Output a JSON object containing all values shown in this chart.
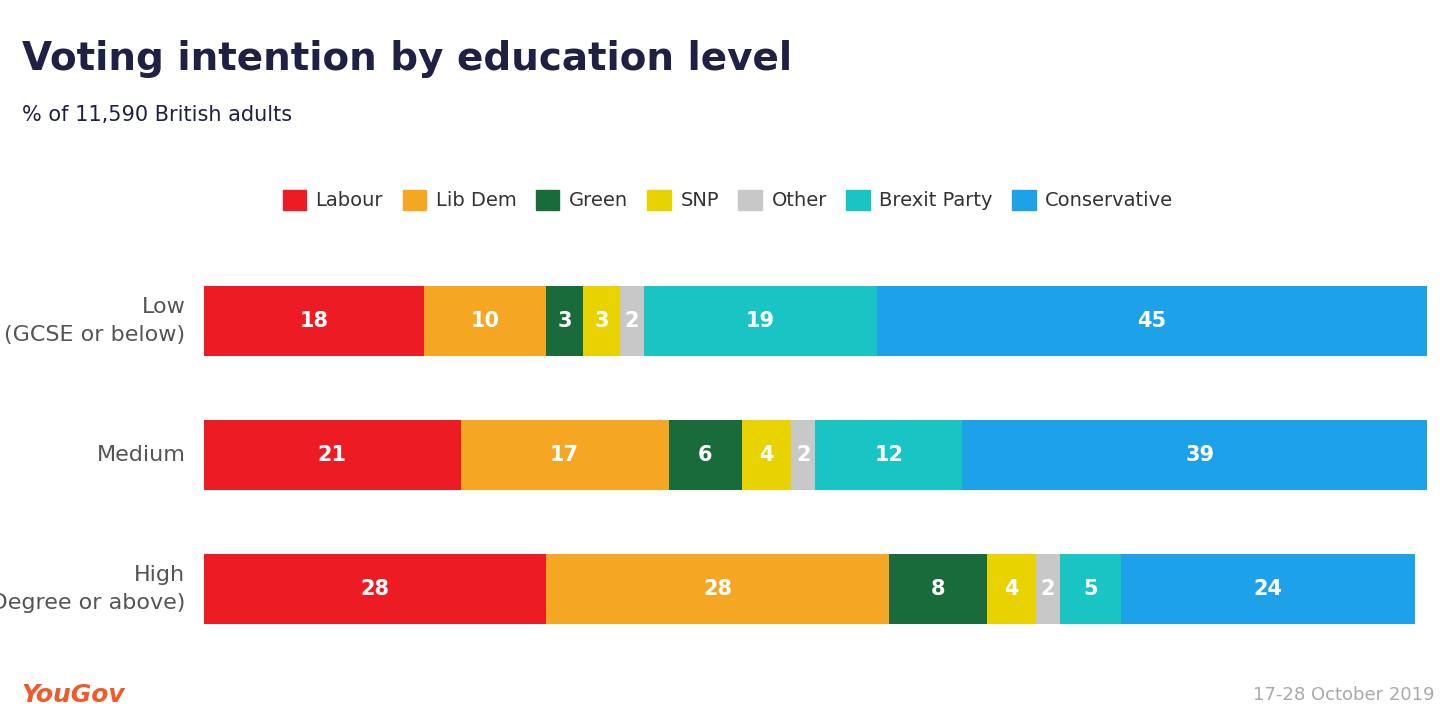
{
  "title": "Voting intention by education level",
  "subtitle": "% of 11,590 British adults",
  "footer_left": "YouGov",
  "footer_right": "17-28 October 2019",
  "header_bg_color": "#e8e8f0",
  "body_bg_color": "#ffffff",
  "title_color": "#1e2044",
  "subtitle_color": "#1e2044",
  "label_color": "#555555",
  "categories": [
    "Low\n(GCSE or below)",
    "Medium",
    "High\n(Degree or above)"
  ],
  "parties": [
    "Labour",
    "Lib Dem",
    "Green",
    "SNP",
    "Other",
    "Brexit Party",
    "Conservative"
  ],
  "colors": [
    "#ed1c24",
    "#f5a623",
    "#1a6b3c",
    "#e8d200",
    "#c8c8c8",
    "#19c4c4",
    "#1da1e8"
  ],
  "values": [
    [
      18,
      10,
      3,
      3,
      2,
      19,
      45
    ],
    [
      21,
      17,
      6,
      4,
      2,
      12,
      39
    ],
    [
      28,
      28,
      8,
      4,
      2,
      5,
      24
    ]
  ],
  "title_fontsize": 28,
  "subtitle_fontsize": 15,
  "label_fontsize": 16,
  "bar_label_fontsize": 15,
  "legend_fontsize": 14,
  "footer_fontsize": 13,
  "yougov_fontsize": 18
}
